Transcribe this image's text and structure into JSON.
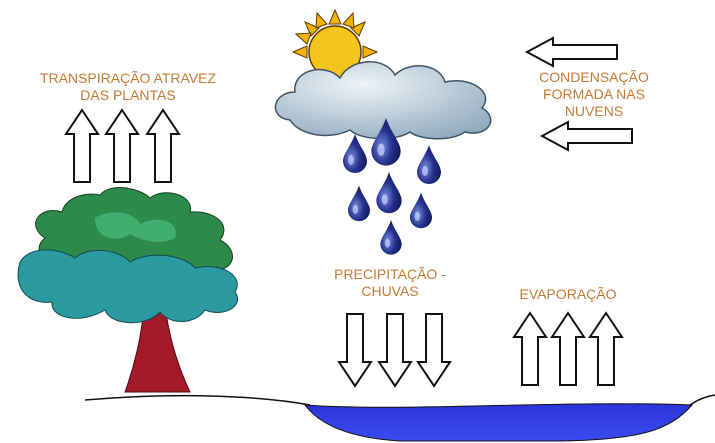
{
  "labels": {
    "transpiration": [
      "TRANSPIRAÇÃO ATRAVEZ",
      "DAS PLANTAS"
    ],
    "condensation": [
      "CONDENSAÇÃO",
      "FORMADA NAS",
      "NUVENS"
    ],
    "precipitation": [
      "PRECIPITAÇÃO -",
      "CHUVAS"
    ],
    "evaporation": [
      "EVAPORAÇÃO"
    ]
  }
}
